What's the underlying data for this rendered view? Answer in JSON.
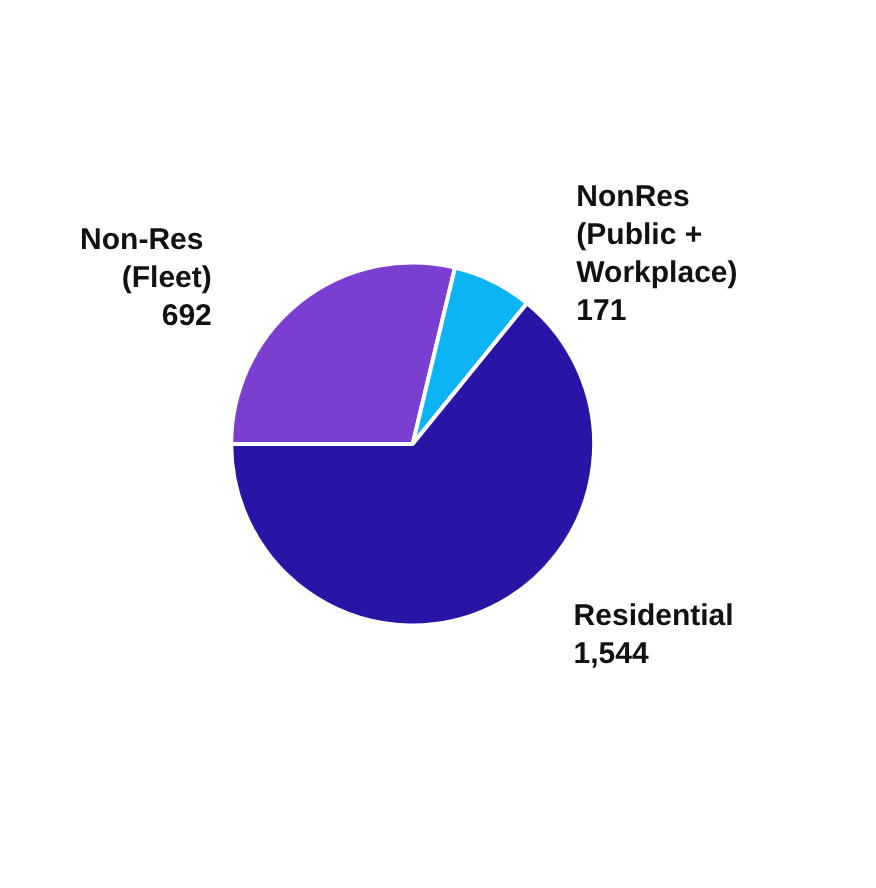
{
  "chart_data": {
    "type": "pie",
    "categories": [
      "Non-Res (Fleet)",
      "NonRes (Public + Workplace)",
      "Residential"
    ],
    "values": [
      692,
      171,
      1544
    ],
    "value_labels": [
      "692",
      "171",
      "1,544"
    ],
    "colors": [
      "#7a3fd1",
      "#0ab4f5",
      "#2815a6"
    ],
    "legend": false
  }
}
